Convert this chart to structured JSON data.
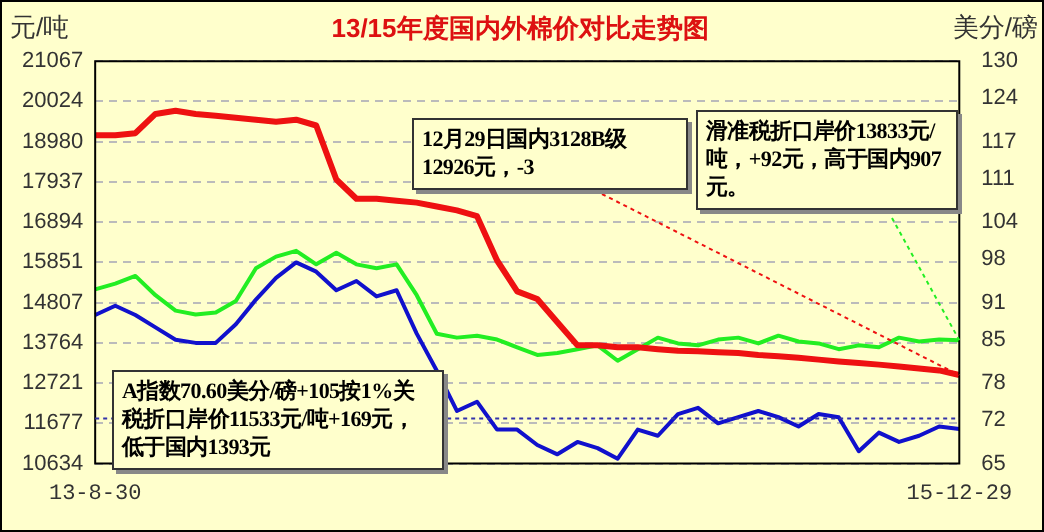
{
  "chart_data": {
    "type": "line",
    "title": "13/15年度国内外棉价对比走势图",
    "ylabel": "元/吨",
    "y2label": "美分/磅",
    "categories": [
      "13-8-30",
      null,
      null,
      null,
      null,
      null,
      null,
      null,
      null,
      null,
      null,
      null,
      null,
      null,
      null,
      null,
      null,
      null,
      null,
      null,
      null,
      null,
      null,
      null,
      null,
      null,
      null,
      null,
      null,
      null,
      null,
      null,
      null,
      null,
      null,
      null,
      null,
      null,
      null,
      null,
      null,
      null,
      null,
      "15-12-29"
    ],
    "series": [
      {
        "color": "#ee1111",
        "values": [
          19150,
          19150,
          19200,
          19700,
          19780,
          19700,
          19650,
          19600,
          19550,
          19500,
          19550,
          19400,
          18000,
          17500,
          17500,
          17450,
          17400,
          17300,
          17200,
          17050,
          15900,
          15100,
          14900,
          14300,
          13700,
          13700,
          13650,
          13650,
          13600,
          13560,
          13550,
          13520,
          13500,
          13450,
          13420,
          13380,
          13330,
          13280,
          13240,
          13200,
          13150,
          13100,
          13050,
          12930
        ]
      },
      {
        "color": "#22ee22",
        "values": [
          15150,
          15300,
          15500,
          15000,
          14600,
          14500,
          14550,
          14850,
          15700,
          16000,
          16150,
          15800,
          16100,
          15800,
          15700,
          15800,
          15000,
          14000,
          13900,
          13950,
          13850,
          13650,
          13450,
          13500,
          13600,
          13700,
          13300,
          13600,
          13900,
          13750,
          13700,
          13850,
          13900,
          13750,
          13950,
          13800,
          13750,
          13600,
          13700,
          13650,
          13900,
          13800,
          13850,
          13830
        ]
      },
      {
        "color": "#1111cc",
        "axis": "y2",
        "values": [
          89,
          90.5,
          89,
          87,
          85,
          84.5,
          84.5,
          87.5,
          91.5,
          95,
          97.5,
          96,
          93,
          94.5,
          92,
          93,
          86,
          80,
          73.5,
          75,
          70.5,
          70.5,
          68,
          66.5,
          68.5,
          67.5,
          65.8,
          70.5,
          69.5,
          73,
          74,
          71.5,
          72.5,
          73.5,
          72.5,
          71,
          73,
          72.5,
          67,
          70,
          68.5,
          69.5,
          71,
          70.6
        ]
      }
    ],
    "ylim": [
      10634,
      21067
    ],
    "yticks": [
      10634,
      11677,
      12721,
      13764,
      14807,
      15851,
      16894,
      17937,
      18980,
      20024,
      21067
    ],
    "y2lim": [
      65,
      130
    ],
    "y2ticks": [
      65,
      72,
      78,
      85,
      91,
      98,
      104,
      111,
      117,
      124,
      130
    ],
    "ref_lines": [
      {
        "axis": "y2",
        "value": 72.3,
        "color": "#3333aa",
        "line_style": "dotted"
      }
    ],
    "annotations": [
      {
        "text": "12月29日国内3128B级12926元，-3",
        "x": "15-12-29",
        "y": 12926
      },
      {
        "text": "滑准税折口岸价13833元/吨，+92元，高于国内907元。",
        "x": "15-12-29",
        "y": 13833
      },
      "A指数70.60美分/磅+105按1%关税折口岸价11533元/吨+169元，低于国内1393元"
    ],
    "grid": "y",
    "legend": false,
    "marker": "none",
    "line_style": "solid"
  }
}
